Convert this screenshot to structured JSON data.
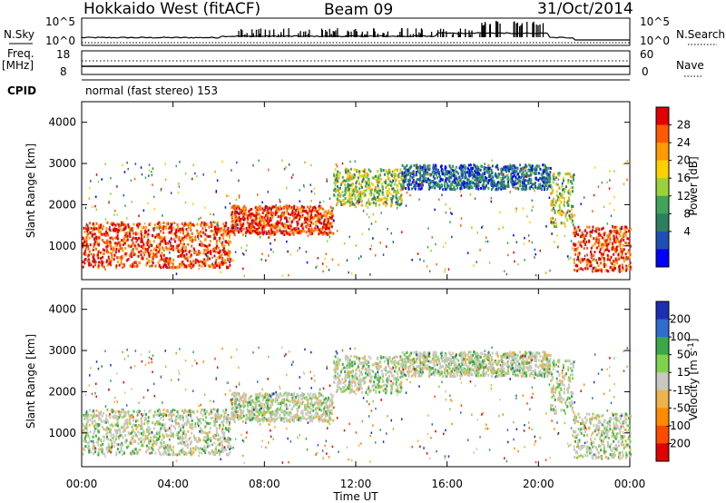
{
  "header": {
    "station": "Hokkaido West (fitACF)",
    "beam": "Beam 09",
    "date": "31/Oct/2014"
  },
  "noise_panel": {
    "left_label": "N.Sky",
    "right_label": "N.Search",
    "left_ticks": [
      "10^5",
      "10^0"
    ],
    "right_ticks": [
      "10^5",
      "10^0"
    ]
  },
  "freq_panel": {
    "label_line1": "Freq.",
    "label_line2": "[MHz]",
    "left_ticks": [
      "18",
      "8"
    ],
    "right_ticks": [
      "60",
      "0"
    ],
    "right_label": "Nave"
  },
  "cpid": {
    "label": "CPID",
    "text": "normal (fast stereo) 153"
  },
  "power_panel": {
    "ylabel": "Slant Range [km]",
    "yticks": [
      "4000",
      "3000",
      "2000",
      "1000"
    ],
    "cb_title": "Power [dB]",
    "cb_ticks": [
      "28",
      "24",
      "20",
      "16",
      "12",
      "8",
      "4"
    ],
    "cb_colors": [
      "#e00000",
      "#ff5a00",
      "#ff9a00",
      "#ffd000",
      "#9bd23c",
      "#3fa45a",
      "#2e7f60",
      "#1f4fb4",
      "#0000ff"
    ]
  },
  "velocity_panel": {
    "ylabel": "Slant Range [km]",
    "yticks": [
      "4000",
      "3000",
      "2000",
      "1000"
    ],
    "cb_title": "Velocity [m s^-1]",
    "cb_title_base": "Velocity [m s",
    "cb_title_sup": "-1",
    "cb_title_end": "]",
    "cb_ticks": [
      "200",
      "100",
      "50",
      "15",
      "-15",
      "-50",
      "-100",
      "-200"
    ],
    "cb_colors": [
      "#1c2fb4",
      "#2f6bd0",
      "#3aa84a",
      "#7fd34a",
      "#c8c8c0",
      "#f0b24a",
      "#ff8a00",
      "#ff4a00",
      "#e00000"
    ]
  },
  "x_axis": {
    "ticks": [
      "00:00",
      "04:00",
      "08:00",
      "12:00",
      "16:00",
      "20:00",
      "00:00"
    ],
    "xlabel": "Time UT"
  },
  "chart_data": {
    "type": "heatmap",
    "title": "Hokkaido West (fitACF) Beam 09 31/Oct/2014",
    "x_range_hours": [
      0,
      24
    ],
    "y_range_km": [
      180,
      4500
    ],
    "panels": [
      {
        "name": "Power",
        "quantity": "Power [dB]",
        "colorbar_ticks": [
          4,
          8,
          12,
          16,
          20,
          24,
          28
        ],
        "regions": [
          {
            "t0": 0,
            "t1": 6.5,
            "r0": 500,
            "r1": 1600,
            "level": "high"
          },
          {
            "t0": 6.5,
            "t1": 11,
            "r0": 1300,
            "r1": 2000,
            "level": "high"
          },
          {
            "t0": 11,
            "t1": 14,
            "r0": 2000,
            "r1": 2900,
            "level": "medium"
          },
          {
            "t0": 14,
            "t1": 20.5,
            "r0": 2400,
            "r1": 3000,
            "level": "low"
          },
          {
            "t0": 20.5,
            "t1": 21.5,
            "r0": 1500,
            "r1": 2800,
            "level": "medium"
          },
          {
            "t0": 21.5,
            "t1": 24,
            "r0": 400,
            "r1": 1500,
            "level": "high"
          }
        ]
      },
      {
        "name": "Velocity",
        "quantity": "Velocity [m s^-1]",
        "colorbar_ticks": [
          -200,
          -100,
          -50,
          -15,
          15,
          50,
          100,
          200
        ]
      }
    ]
  }
}
